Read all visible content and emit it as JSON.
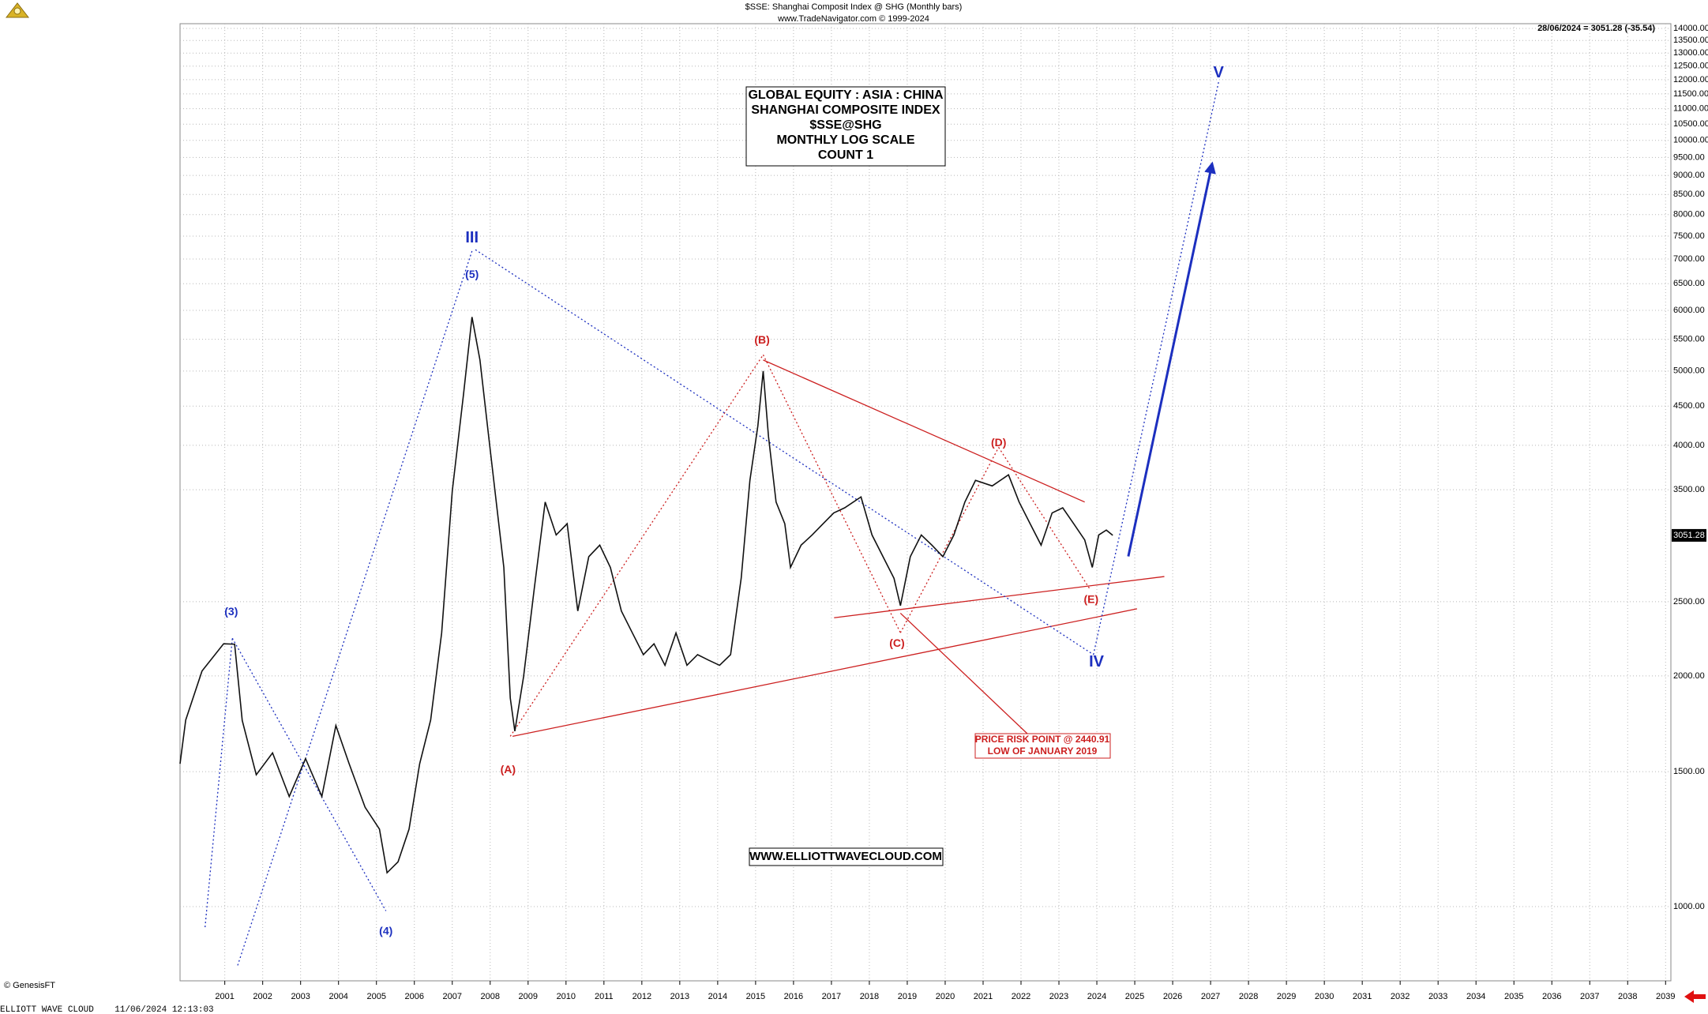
{
  "chart_data": {
    "type": "line",
    "title": "$SSE:  Shanghai Composit Index @ SHG  (Monthly bars)",
    "subtitle": "www.TradeNavigator.com © 1999-2024",
    "last_quote": "28/06/2024 = 3051.28 (-35.54)",
    "last_price": 3051.28,
    "info_box": [
      "GLOBAL EQUITY : ASIA : CHINA",
      "SHANGHAI COMPOSITE INDEX",
      "$SSE@SHG",
      "MONTHLY LOG SCALE",
      "COUNT 1"
    ],
    "risk_box": [
      "PRICE RISK POINT @ 2440.91",
      "LOW OF JANUARY 2019"
    ],
    "website": "WWW.ELLIOTTWAVECLOUD.COM",
    "source": "© GenesisFT",
    "footer": "ELLIOTT WAVE CLOUD    11/06/2024 12:13:03",
    "log_y": true,
    "grid": true,
    "xlim": [
      1999.82,
      2039.14
    ],
    "ylim": [
      800,
      14200
    ],
    "xticks": [
      2001,
      2002,
      2003,
      2004,
      2005,
      2006,
      2007,
      2008,
      2009,
      2010,
      2011,
      2012,
      2013,
      2014,
      2015,
      2016,
      2017,
      2018,
      2019,
      2020,
      2021,
      2022,
      2023,
      2024,
      2025,
      2026,
      2027,
      2028,
      2029,
      2030,
      2031,
      2032,
      2033,
      2034,
      2035,
      2036,
      2037,
      2038,
      2039
    ],
    "yticks": [
      {
        "value": 1000,
        "label": "1000.00"
      },
      {
        "value": 1500,
        "label": "1500.00"
      },
      {
        "value": 2000,
        "label": "2000.00"
      },
      {
        "value": 2500,
        "label": "2500.00"
      },
      {
        "value": 3500,
        "label": "3500.00"
      },
      {
        "value": 4000,
        "label": "4000.00"
      },
      {
        "value": 4500,
        "label": "4500.00"
      },
      {
        "value": 5000,
        "label": "5000.00"
      },
      {
        "value": 5500,
        "label": "5500.00"
      },
      {
        "value": 6000,
        "label": "6000.00"
      },
      {
        "value": 6500,
        "label": "6500.00"
      },
      {
        "value": 7000,
        "label": "7000.00"
      },
      {
        "value": 7500,
        "label": "7500.00"
      },
      {
        "value": 8000,
        "label": "8000.00"
      },
      {
        "value": 8500,
        "label": "8500.00"
      },
      {
        "value": 9000,
        "label": "9000.00"
      },
      {
        "value": 9500,
        "label": "9500.00"
      },
      {
        "value": 10000,
        "label": "10000.00"
      },
      {
        "value": 10500,
        "label": "10500.00"
      },
      {
        "value": 11000,
        "label": "11000.00"
      },
      {
        "value": 11500,
        "label": "11500.00"
      },
      {
        "value": 12000,
        "label": "12000.00"
      },
      {
        "value": 12500,
        "label": "12500.00"
      },
      {
        "value": 13000,
        "label": "13000.00"
      },
      {
        "value": 13500,
        "label": "13500.00"
      },
      {
        "value": 14000,
        "label": "14000.00"
      }
    ],
    "x": [
      1999.82,
      1999.97,
      2000.4,
      2000.97,
      2001.26,
      2001.46,
      2001.83,
      2002.26,
      2002.7,
      2003.13,
      2003.56,
      2003.93,
      2004.28,
      2004.7,
      2005.08,
      2005.28,
      2005.57,
      2005.86,
      2006.14,
      2006.43,
      2006.72,
      2007.0,
      2007.3,
      2007.52,
      2007.73,
      2007.96,
      2008.16,
      2008.36,
      2008.53,
      2008.65,
      2008.88,
      2009.16,
      2009.45,
      2009.74,
      2010.03,
      2010.31,
      2010.6,
      2010.89,
      2011.17,
      2011.46,
      2011.75,
      2012.04,
      2012.32,
      2012.61,
      2012.9,
      2013.19,
      2013.47,
      2013.76,
      2014.05,
      2014.34,
      2014.62,
      2014.85,
      2015.06,
      2015.2,
      2015.34,
      2015.54,
      2015.77,
      2015.92,
      2016.2,
      2016.49,
      2016.78,
      2017.06,
      2017.35,
      2017.78,
      2018.07,
      2018.36,
      2018.65,
      2018.82,
      2019.08,
      2019.37,
      2019.65,
      2019.94,
      2020.23,
      2020.52,
      2020.8,
      2021.24,
      2021.67,
      2021.95,
      2022.24,
      2022.53,
      2022.82,
      2023.1,
      2023.39,
      2023.68,
      2023.88,
      2024.05,
      2024.25,
      2024.42
    ],
    "series": [
      {
        "color": "#111111",
        "values": [
          1536,
          1752,
          2030,
          2203,
          2200,
          1750,
          1486,
          1587,
          1392,
          1560,
          1392,
          1723,
          1536,
          1348,
          1262,
          1107,
          1144,
          1262,
          1536,
          1752,
          2276,
          3486,
          4678,
          5881,
          5168,
          4107,
          3373,
          2771,
          1871,
          1694,
          1995,
          2594,
          3373,
          3055,
          3160,
          2431,
          2862,
          2963,
          2771,
          2431,
          2276,
          2132,
          2203,
          2065,
          2276,
          2065,
          2132,
          2097,
          2065,
          2132,
          2682,
          3600,
          4242,
          5000,
          4107,
          3373,
          3160,
          2771,
          2963,
          3055,
          3160,
          3264,
          3315,
          3425,
          3055,
          2862,
          2682,
          2470,
          2862,
          3055,
          2963,
          2862,
          3055,
          3373,
          3600,
          3540,
          3660,
          3373,
          3160,
          2963,
          3264,
          3315,
          3160,
          3010,
          2771,
          3055,
          3100,
          3051.28
        ]
      }
    ],
    "annotations": [
      {
        "text": "III",
        "x": 2007.52,
        "y": 7455,
        "color": "#1c2fbf",
        "size": "big"
      },
      {
        "text": "(5)",
        "x": 2007.52,
        "y": 6670,
        "color": "#1c2fbf",
        "size": "small"
      },
      {
        "text": "(3)",
        "x": 2001.17,
        "y": 2423,
        "color": "#1c2fbf",
        "size": "small"
      },
      {
        "text": "(4)",
        "x": 2005.25,
        "y": 927,
        "color": "#1c2fbf",
        "size": "small"
      },
      {
        "text": "(A)",
        "x": 2008.47,
        "y": 1506,
        "color": "#cc1f1f",
        "size": "small"
      },
      {
        "text": "(B)",
        "x": 2015.17,
        "y": 5480,
        "color": "#cc1f1f",
        "size": "small"
      },
      {
        "text": "(C)",
        "x": 2018.73,
        "y": 2203,
        "color": "#cc1f1f",
        "size": "small"
      },
      {
        "text": "(D)",
        "x": 2021.41,
        "y": 4025,
        "color": "#cc1f1f",
        "size": "small"
      },
      {
        "text": "(E)",
        "x": 2023.85,
        "y": 2512,
        "color": "#cc1f1f",
        "size": "small"
      },
      {
        "text": "IV",
        "x": 2023.99,
        "y": 2084,
        "color": "#1c2fbf",
        "size": "big"
      },
      {
        "text": "V",
        "x": 2027.21,
        "y": 12230,
        "color": "#1c2fbf",
        "size": "big"
      }
    ],
    "lines": [
      {
        "x": [
          2015.2,
          2023.68
        ],
        "y": [
          5168,
          3373
        ],
        "color": "#cc1f1f",
        "style": "solid"
      },
      {
        "x": [
          2008.59,
          2025.06
        ],
        "y": [
          1668,
          2447
        ],
        "color": "#cc1f1f",
        "style": "solid"
      },
      {
        "x": [
          2017.07,
          2025.78
        ],
        "y": [
          2382,
          2696
        ],
        "color": "#cc1f1f",
        "style": "solid"
      },
      {
        "x": [
          2018.82,
          2022.24
        ],
        "y": [
          2415,
          1668
        ],
        "color": "#cc1f1f",
        "style": "solid"
      },
      {
        "x": [
          2008.53,
          2015.2
        ],
        "y": [
          1668,
          5250
        ],
        "color": "#cc1f1f",
        "style": "dotted"
      },
      {
        "x": [
          2015.2,
          2018.82
        ],
        "y": [
          5250,
          2277
        ],
        "color": "#cc1f1f",
        "style": "dotted"
      },
      {
        "x": [
          2018.82,
          2021.41
        ],
        "y": [
          2277,
          3975
        ],
        "color": "#cc1f1f",
        "style": "dotted"
      },
      {
        "x": [
          2021.41,
          2023.82
        ],
        "y": [
          3975,
          2595
        ],
        "color": "#cc1f1f",
        "style": "dotted"
      },
      {
        "x": [
          2000.48,
          2001.2
        ],
        "y": [
          940,
          2240
        ],
        "color": "#1c2fbf",
        "style": "dotted"
      },
      {
        "x": [
          2001.2,
          2005.25
        ],
        "y": [
          2240,
          987
        ],
        "color": "#1c2fbf",
        "style": "dotted"
      },
      {
        "x": [
          2001.34,
          2007.52
        ],
        "y": [
          838,
          7170
        ],
        "color": "#1c2fbf",
        "style": "dotted"
      },
      {
        "x": [
          2007.61,
          2023.91
        ],
        "y": [
          7200,
          2132
        ],
        "color": "#1c2fbf",
        "style": "dotted"
      },
      {
        "x": [
          2023.91,
          2027.21
        ],
        "y": [
          2132,
          11910
        ],
        "color": "#1c2fbf",
        "style": "dotted"
      },
      {
        "x": [
          2024.83,
          2027.04
        ],
        "y": [
          2864,
          9320
        ],
        "color": "#1c2fbf",
        "style": "arrow"
      }
    ]
  }
}
